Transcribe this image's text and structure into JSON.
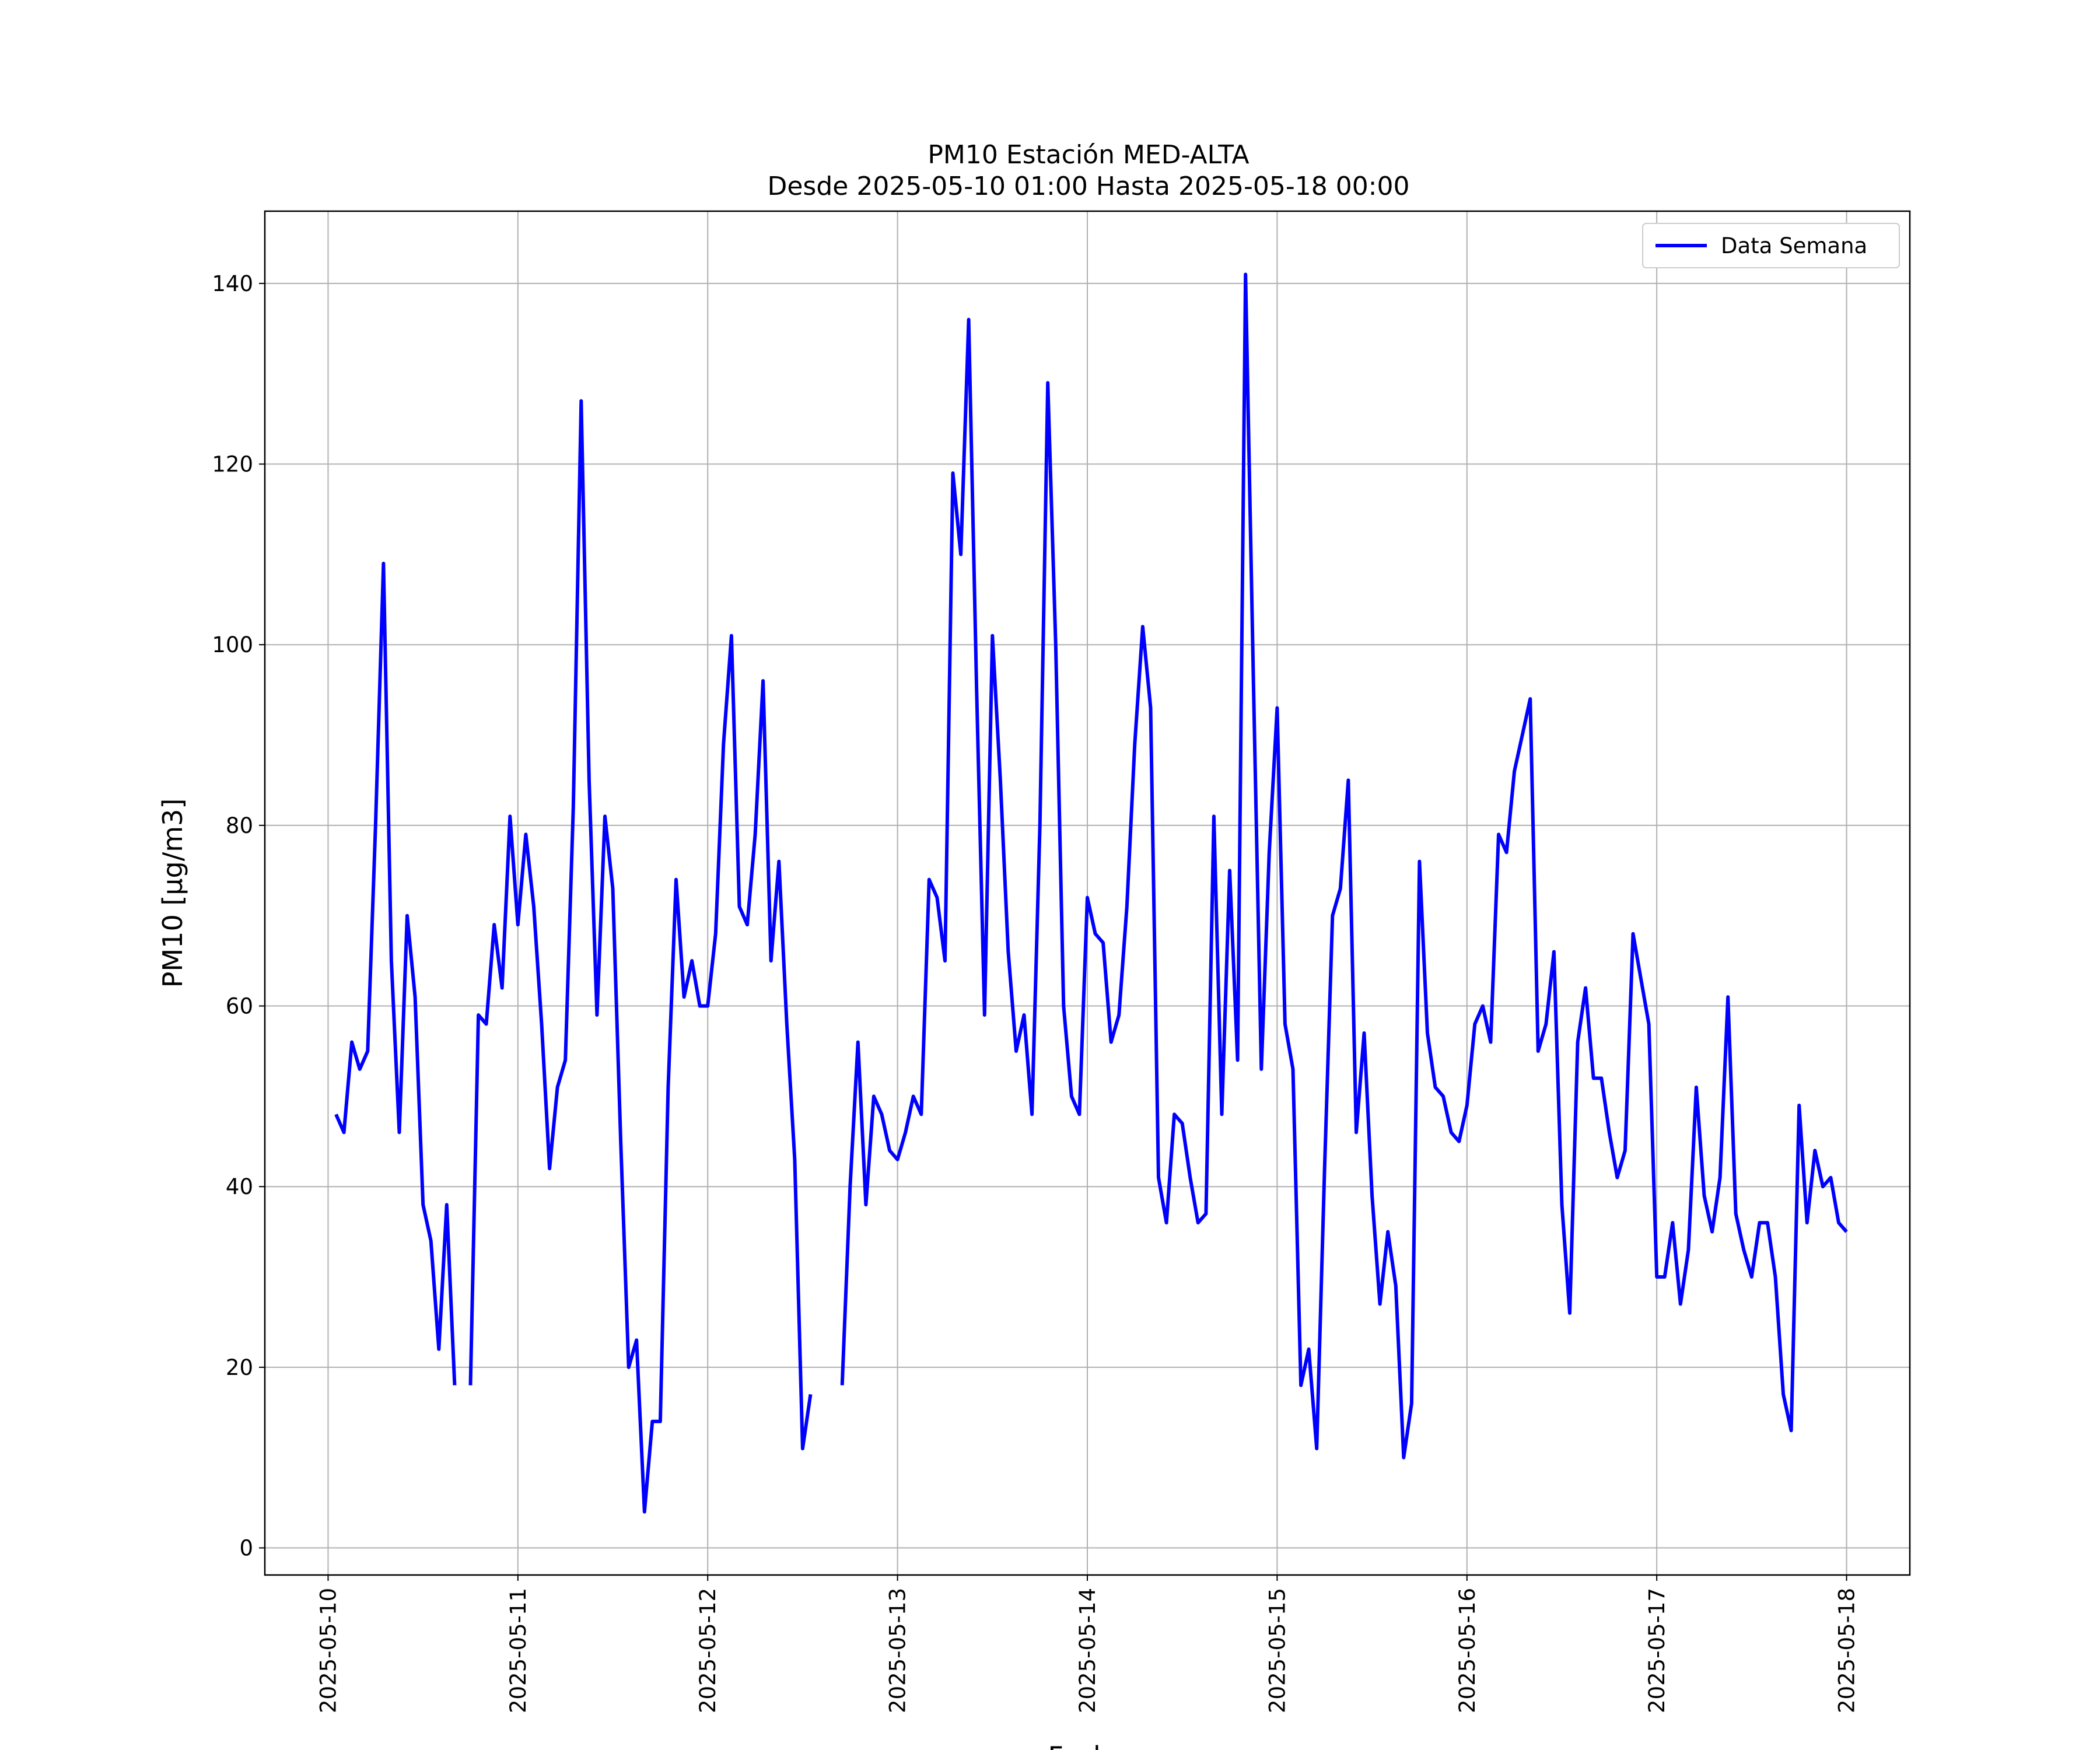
{
  "chart_data": {
    "type": "line",
    "title": "PM10 Estación MED-ALTA",
    "subtitle": "Desde 2025-05-10 01:00 Hasta 2025-05-18 00:00",
    "xlabel": "Fecha",
    "ylabel": "PM10 [µg/m3]",
    "ylim": [
      -3,
      148
    ],
    "xlim": [
      "2025-05-09 16:00",
      "2025-05-18 08:00"
    ],
    "grid": true,
    "legend_position": "top-right",
    "x_ticks": [
      "2025-05-10",
      "2025-05-11",
      "2025-05-12",
      "2025-05-13",
      "2025-05-14",
      "2025-05-15",
      "2025-05-16",
      "2025-05-17",
      "2025-05-18"
    ],
    "y_ticks": [
      0,
      20,
      40,
      60,
      80,
      100,
      120,
      140
    ],
    "series": [
      {
        "name": "Data Semana",
        "color": "#0000ff",
        "points": [
          [
            "2025-05-10 01:00",
            48
          ],
          [
            "2025-05-10 02:00",
            46
          ],
          [
            "2025-05-10 03:00",
            56
          ],
          [
            "2025-05-10 04:00",
            53
          ],
          [
            "2025-05-10 05:00",
            55
          ],
          [
            "2025-05-10 06:00",
            80
          ],
          [
            "2025-05-10 07:00",
            109
          ],
          [
            "2025-05-10 08:00",
            65
          ],
          [
            "2025-05-10 09:00",
            46
          ],
          [
            "2025-05-10 10:00",
            70
          ],
          [
            "2025-05-10 11:00",
            61
          ],
          [
            "2025-05-10 12:00",
            38
          ],
          [
            "2025-05-10 13:00",
            34
          ],
          [
            "2025-05-10 14:00",
            22
          ],
          [
            "2025-05-10 15:00",
            38
          ],
          [
            "2025-05-10 16:00",
            18
          ],
          [
            "2025-05-10 17:00",
            null
          ],
          [
            "2025-05-10 18:00",
            18
          ],
          [
            "2025-05-10 19:00",
            59
          ],
          [
            "2025-05-10 20:00",
            58
          ],
          [
            "2025-05-10 21:00",
            69
          ],
          [
            "2025-05-10 22:00",
            62
          ],
          [
            "2025-05-10 23:00",
            81
          ],
          [
            "2025-05-11 00:00",
            69
          ],
          [
            "2025-05-11 01:00",
            79
          ],
          [
            "2025-05-11 02:00",
            71
          ],
          [
            "2025-05-11 03:00",
            58
          ],
          [
            "2025-05-11 04:00",
            42
          ],
          [
            "2025-05-11 05:00",
            51
          ],
          [
            "2025-05-11 06:00",
            54
          ],
          [
            "2025-05-11 07:00",
            82
          ],
          [
            "2025-05-11 08:00",
            127
          ],
          [
            "2025-05-11 09:00",
            85
          ],
          [
            "2025-05-11 10:00",
            59
          ],
          [
            "2025-05-11 11:00",
            81
          ],
          [
            "2025-05-11 12:00",
            73
          ],
          [
            "2025-05-11 13:00",
            45
          ],
          [
            "2025-05-11 14:00",
            20
          ],
          [
            "2025-05-11 15:00",
            23
          ],
          [
            "2025-05-11 16:00",
            4
          ],
          [
            "2025-05-11 17:00",
            14
          ],
          [
            "2025-05-11 18:00",
            14
          ],
          [
            "2025-05-11 19:00",
            51
          ],
          [
            "2025-05-11 20:00",
            74
          ],
          [
            "2025-05-11 21:00",
            61
          ],
          [
            "2025-05-11 22:00",
            65
          ],
          [
            "2025-05-11 23:00",
            60
          ],
          [
            "2025-05-12 00:00",
            60
          ],
          [
            "2025-05-12 01:00",
            68
          ],
          [
            "2025-05-12 02:00",
            89
          ],
          [
            "2025-05-12 03:00",
            101
          ],
          [
            "2025-05-12 04:00",
            71
          ],
          [
            "2025-05-12 05:00",
            69
          ],
          [
            "2025-05-12 06:00",
            79
          ],
          [
            "2025-05-12 07:00",
            96
          ],
          [
            "2025-05-12 08:00",
            65
          ],
          [
            "2025-05-12 09:00",
            76
          ],
          [
            "2025-05-12 10:00",
            58
          ],
          [
            "2025-05-12 11:00",
            43
          ],
          [
            "2025-05-12 12:00",
            11
          ],
          [
            "2025-05-12 13:00",
            17
          ],
          [
            "2025-05-12 14:00",
            null
          ],
          [
            "2025-05-12 17:00",
            18
          ],
          [
            "2025-05-12 18:00",
            40
          ],
          [
            "2025-05-12 19:00",
            56
          ],
          [
            "2025-05-12 20:00",
            38
          ],
          [
            "2025-05-12 21:00",
            50
          ],
          [
            "2025-05-12 22:00",
            48
          ],
          [
            "2025-05-12 23:00",
            44
          ],
          [
            "2025-05-13 00:00",
            43
          ],
          [
            "2025-05-13 01:00",
            46
          ],
          [
            "2025-05-13 02:00",
            50
          ],
          [
            "2025-05-13 03:00",
            48
          ],
          [
            "2025-05-13 04:00",
            74
          ],
          [
            "2025-05-13 05:00",
            72
          ],
          [
            "2025-05-13 06:00",
            65
          ],
          [
            "2025-05-13 07:00",
            119
          ],
          [
            "2025-05-13 08:00",
            110
          ],
          [
            "2025-05-13 09:00",
            136
          ],
          [
            "2025-05-13 10:00",
            95
          ],
          [
            "2025-05-13 11:00",
            59
          ],
          [
            "2025-05-13 12:00",
            101
          ],
          [
            "2025-05-13 13:00",
            85
          ],
          [
            "2025-05-13 14:00",
            66
          ],
          [
            "2025-05-13 15:00",
            55
          ],
          [
            "2025-05-13 16:00",
            59
          ],
          [
            "2025-05-13 17:00",
            48
          ],
          [
            "2025-05-13 18:00",
            80
          ],
          [
            "2025-05-13 19:00",
            129
          ],
          [
            "2025-05-13 20:00",
            100
          ],
          [
            "2025-05-13 21:00",
            60
          ],
          [
            "2025-05-13 22:00",
            50
          ],
          [
            "2025-05-13 23:00",
            48
          ],
          [
            "2025-05-14 00:00",
            72
          ],
          [
            "2025-05-14 01:00",
            68
          ],
          [
            "2025-05-14 02:00",
            67
          ],
          [
            "2025-05-14 03:00",
            56
          ],
          [
            "2025-05-14 04:00",
            59
          ],
          [
            "2025-05-14 05:00",
            71
          ],
          [
            "2025-05-14 06:00",
            89
          ],
          [
            "2025-05-14 07:00",
            102
          ],
          [
            "2025-05-14 08:00",
            93
          ],
          [
            "2025-05-14 09:00",
            41
          ],
          [
            "2025-05-14 10:00",
            36
          ],
          [
            "2025-05-14 11:00",
            48
          ],
          [
            "2025-05-14 12:00",
            47
          ],
          [
            "2025-05-14 13:00",
            41
          ],
          [
            "2025-05-14 14:00",
            36
          ],
          [
            "2025-05-14 15:00",
            37
          ],
          [
            "2025-05-14 16:00",
            81
          ],
          [
            "2025-05-14 17:00",
            48
          ],
          [
            "2025-05-14 18:00",
            75
          ],
          [
            "2025-05-14 19:00",
            54
          ],
          [
            "2025-05-14 20:00",
            141
          ],
          [
            "2025-05-14 21:00",
            96
          ],
          [
            "2025-05-14 22:00",
            53
          ],
          [
            "2025-05-14 23:00",
            77
          ],
          [
            "2025-05-15 00:00",
            93
          ],
          [
            "2025-05-15 01:00",
            58
          ],
          [
            "2025-05-15 02:00",
            53
          ],
          [
            "2025-05-15 03:00",
            18
          ],
          [
            "2025-05-15 04:00",
            22
          ],
          [
            "2025-05-15 05:00",
            11
          ],
          [
            "2025-05-15 06:00",
            42
          ],
          [
            "2025-05-15 07:00",
            70
          ],
          [
            "2025-05-15 08:00",
            73
          ],
          [
            "2025-05-15 09:00",
            85
          ],
          [
            "2025-05-15 10:00",
            46
          ],
          [
            "2025-05-15 11:00",
            57
          ],
          [
            "2025-05-15 12:00",
            39
          ],
          [
            "2025-05-15 13:00",
            27
          ],
          [
            "2025-05-15 14:00",
            35
          ],
          [
            "2025-05-15 15:00",
            29
          ],
          [
            "2025-05-15 16:00",
            10
          ],
          [
            "2025-05-15 17:00",
            16
          ],
          [
            "2025-05-15 18:00",
            76
          ],
          [
            "2025-05-15 19:00",
            57
          ],
          [
            "2025-05-15 20:00",
            51
          ],
          [
            "2025-05-15 21:00",
            50
          ],
          [
            "2025-05-15 22:00",
            46
          ],
          [
            "2025-05-15 23:00",
            45
          ],
          [
            "2025-05-16 00:00",
            49
          ],
          [
            "2025-05-16 01:00",
            58
          ],
          [
            "2025-05-16 02:00",
            60
          ],
          [
            "2025-05-16 03:00",
            56
          ],
          [
            "2025-05-16 04:00",
            79
          ],
          [
            "2025-05-16 05:00",
            77
          ],
          [
            "2025-05-16 06:00",
            86
          ],
          [
            "2025-05-16 07:00",
            90
          ],
          [
            "2025-05-16 08:00",
            94
          ],
          [
            "2025-05-16 09:00",
            55
          ],
          [
            "2025-05-16 10:00",
            58
          ],
          [
            "2025-05-16 11:00",
            66
          ],
          [
            "2025-05-16 12:00",
            38
          ],
          [
            "2025-05-16 13:00",
            26
          ],
          [
            "2025-05-16 14:00",
            56
          ],
          [
            "2025-05-16 15:00",
            62
          ],
          [
            "2025-05-16 16:00",
            52
          ],
          [
            "2025-05-16 17:00",
            52
          ],
          [
            "2025-05-16 18:00",
            46
          ],
          [
            "2025-05-16 19:00",
            41
          ],
          [
            "2025-05-16 20:00",
            44
          ],
          [
            "2025-05-16 21:00",
            68
          ],
          [
            "2025-05-16 22:00",
            63
          ],
          [
            "2025-05-16 23:00",
            58
          ],
          [
            "2025-05-17 00:00",
            30
          ],
          [
            "2025-05-17 01:00",
            30
          ],
          [
            "2025-05-17 02:00",
            36
          ],
          [
            "2025-05-17 03:00",
            27
          ],
          [
            "2025-05-17 04:00",
            33
          ],
          [
            "2025-05-17 05:00",
            51
          ],
          [
            "2025-05-17 06:00",
            39
          ],
          [
            "2025-05-17 07:00",
            35
          ],
          [
            "2025-05-17 08:00",
            41
          ],
          [
            "2025-05-17 09:00",
            61
          ],
          [
            "2025-05-17 10:00",
            37
          ],
          [
            "2025-05-17 11:00",
            33
          ],
          [
            "2025-05-17 12:00",
            30
          ],
          [
            "2025-05-17 13:00",
            36
          ],
          [
            "2025-05-17 14:00",
            36
          ],
          [
            "2025-05-17 15:00",
            30
          ],
          [
            "2025-05-17 16:00",
            17
          ],
          [
            "2025-05-17 17:00",
            13
          ],
          [
            "2025-05-17 18:00",
            49
          ],
          [
            "2025-05-17 19:00",
            36
          ],
          [
            "2025-05-17 20:00",
            44
          ],
          [
            "2025-05-17 21:00",
            40
          ],
          [
            "2025-05-17 22:00",
            41
          ],
          [
            "2025-05-17 23:00",
            36
          ],
          [
            "2025-05-18 00:00",
            35
          ]
        ]
      }
    ]
  }
}
